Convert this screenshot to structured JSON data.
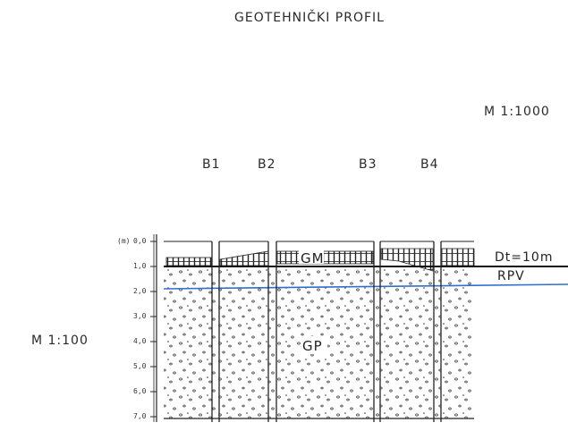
{
  "title": "GEOTEHNIČKI   PROFIL",
  "horizontal_scale": "M  1:1000",
  "vertical_scale": "M  1:100",
  "boreholes": [
    "B1",
    "B2",
    "B3",
    "B4"
  ],
  "depth_axis": {
    "unit": "(m)",
    "ticks": [
      "0,0",
      "1,0",
      "2,0",
      "3,0",
      "4,0",
      "5,0",
      "6,0",
      "7,0"
    ]
  },
  "layers": {
    "upper": "GM",
    "lower": "GP"
  },
  "annotations": {
    "terrain_level": "Dt=10m",
    "groundwater": "RPV"
  },
  "colors": {
    "groundwater_line": "#2f6fd0",
    "ink": "#222222"
  }
}
